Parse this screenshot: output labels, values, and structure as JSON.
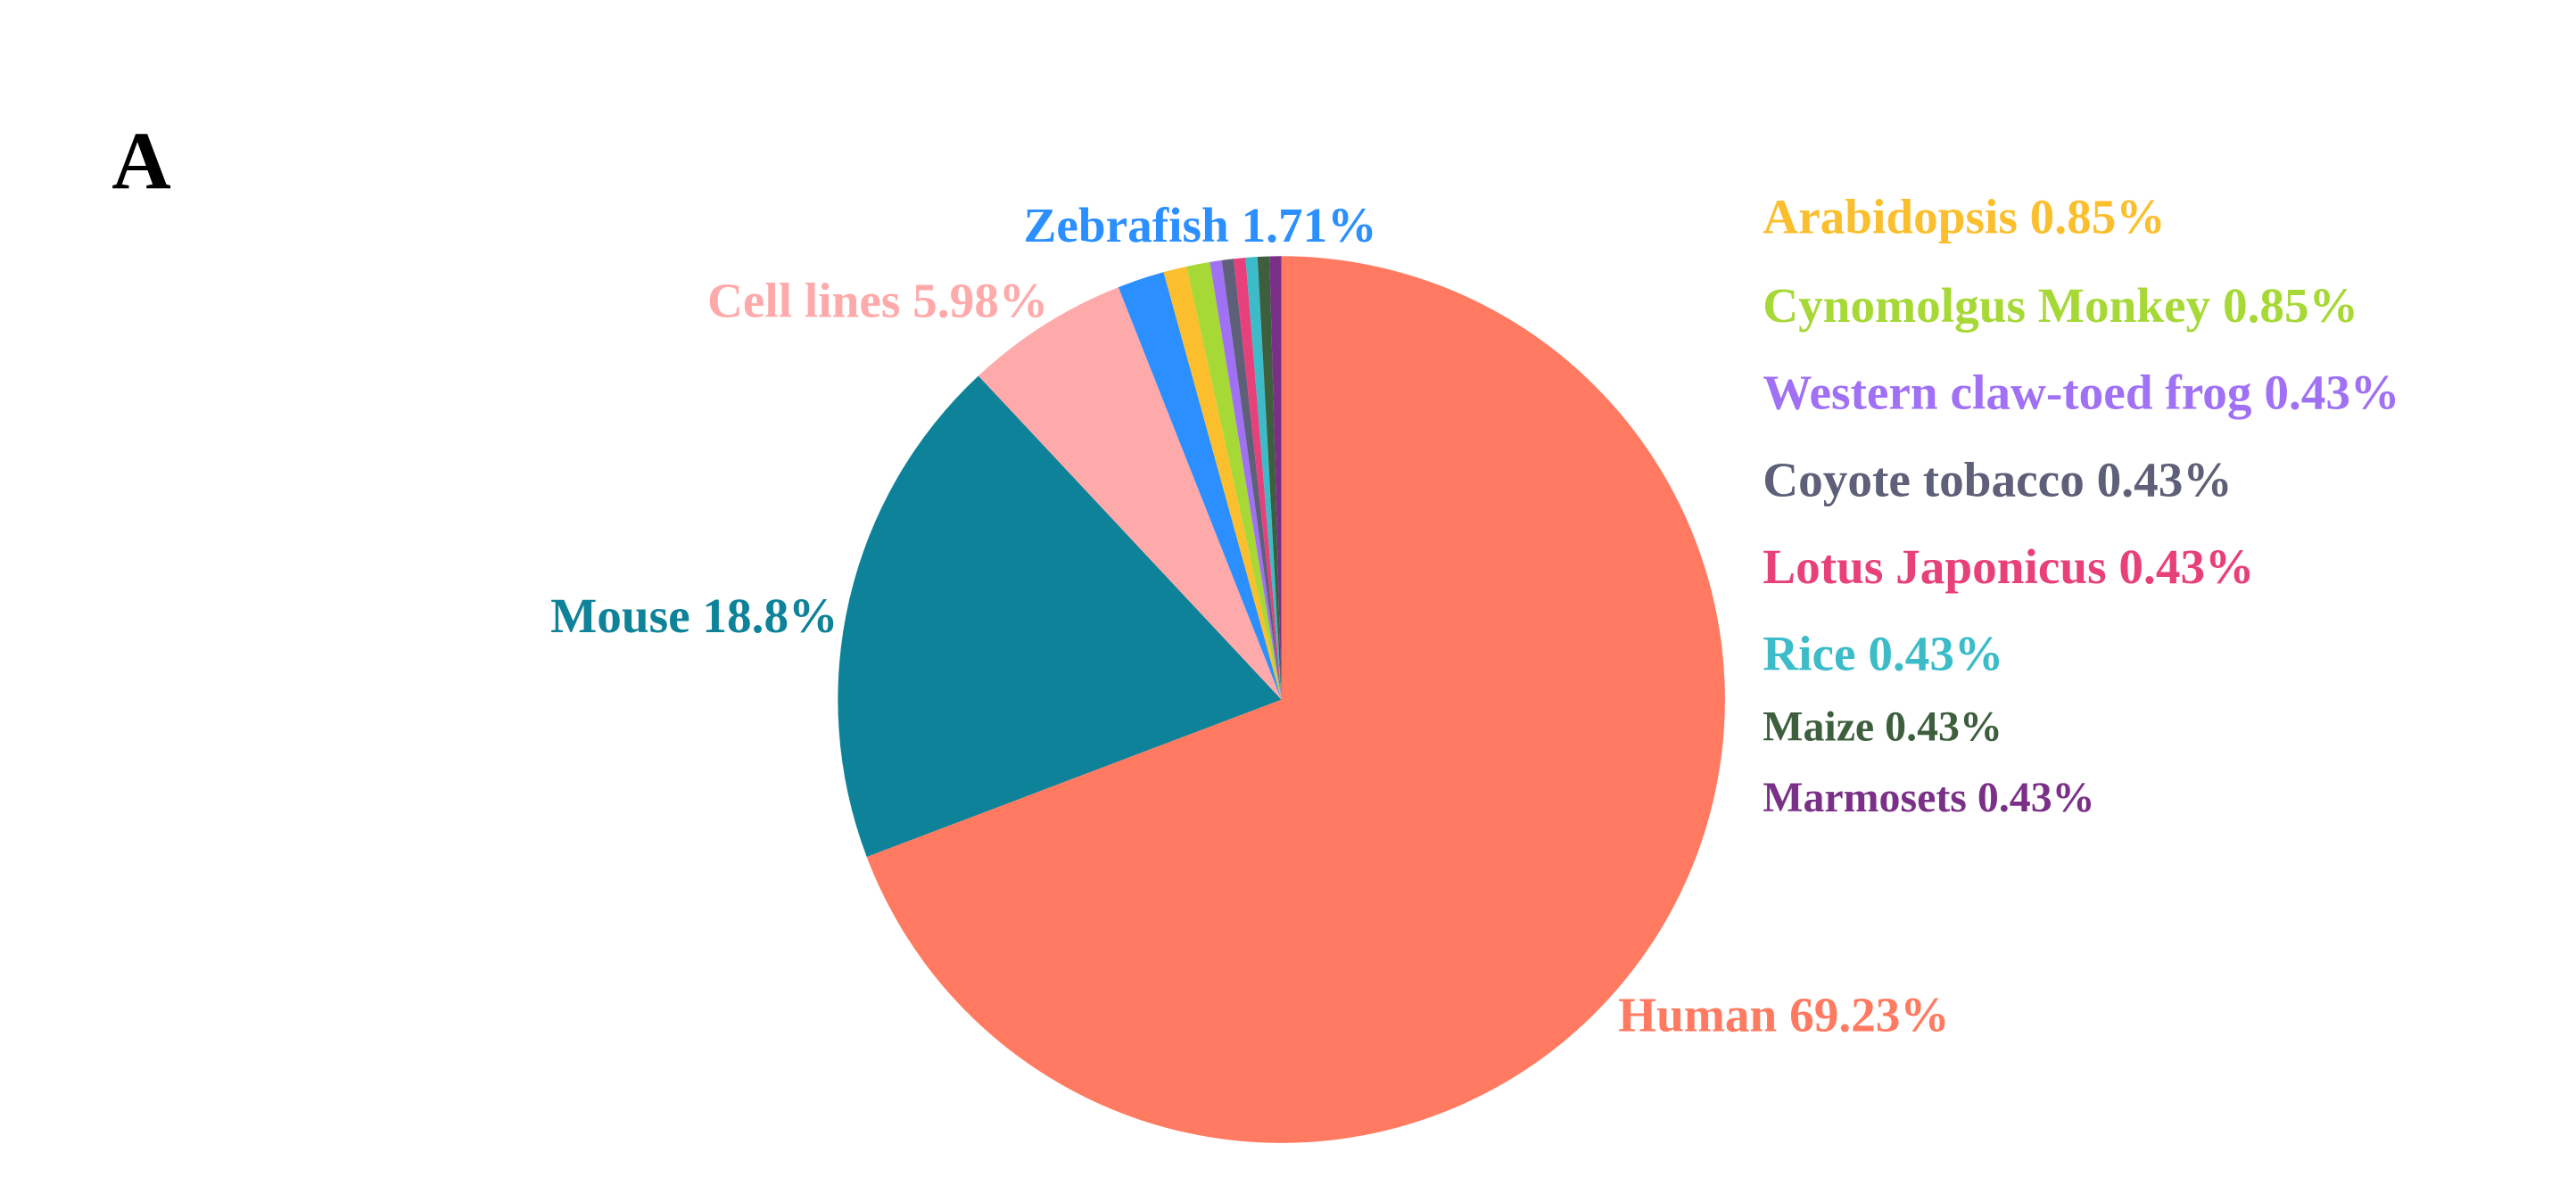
{
  "panel_label": "A",
  "chart_data": {
    "type": "pie",
    "categories": [
      "Human",
      "Mouse",
      "Cell lines",
      "Zebrafish",
      "Arabidopsis",
      "Cynomolgus Monkey",
      "Western claw-toed frog",
      "Coyote tobacco",
      "Lotus Japonicus",
      "Rice",
      "Maize",
      "Marmosets"
    ],
    "values": [
      69.23,
      18.8,
      5.98,
      1.71,
      0.85,
      0.85,
      0.43,
      0.43,
      0.43,
      0.43,
      0.43,
      0.43
    ],
    "value_labels": [
      "69.23%",
      "18.8%",
      "5.98%",
      "1.71%",
      "0.85%",
      "0.85%",
      "0.43%",
      "0.43%",
      "0.43%",
      "0.43%",
      "0.43%",
      "0.43%"
    ],
    "colors": [
      "#ff7a60",
      "#0e8299",
      "#ffaaaa",
      "#2b8fff",
      "#fbbf2e",
      "#a6d836",
      "#a070f5",
      "#5e6079",
      "#e8407a",
      "#3bbcc8",
      "#3e5f3e",
      "#7b3088"
    ]
  }
}
